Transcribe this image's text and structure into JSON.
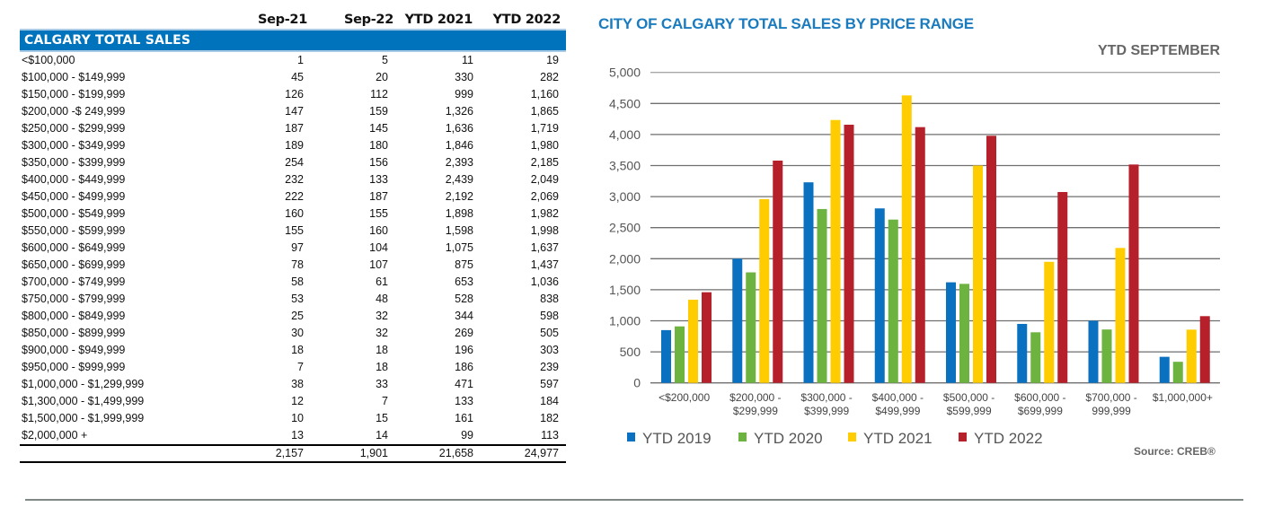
{
  "table": {
    "columns": [
      "Sep-21",
      "Sep-22",
      "YTD 2021",
      "YTD 2022"
    ],
    "section_title": "CALGARY TOTAL SALES",
    "rows": [
      {
        "range": "<$100,000",
        "values": [
          "1",
          "5",
          "11",
          "19"
        ]
      },
      {
        "range": "$100,000 - $149,999",
        "values": [
          "45",
          "20",
          "330",
          "282"
        ]
      },
      {
        "range": "$150,000 - $199,999",
        "values": [
          "126",
          "112",
          "999",
          "1,160"
        ]
      },
      {
        "range": "$200,000 -$ 249,999",
        "values": [
          "147",
          "159",
          "1,326",
          "1,865"
        ]
      },
      {
        "range": "$250,000 - $299,999",
        "values": [
          "187",
          "145",
          "1,636",
          "1,719"
        ]
      },
      {
        "range": "$300,000 - $349,999",
        "values": [
          "189",
          "180",
          "1,846",
          "1,980"
        ]
      },
      {
        "range": "$350,000 - $399,999",
        "values": [
          "254",
          "156",
          "2,393",
          "2,185"
        ]
      },
      {
        "range": "$400,000 - $449,999",
        "values": [
          "232",
          "133",
          "2,439",
          "2,049"
        ]
      },
      {
        "range": "$450,000 - $499,999",
        "values": [
          "222",
          "187",
          "2,192",
          "2,069"
        ]
      },
      {
        "range": "$500,000 - $549,999",
        "values": [
          "160",
          "155",
          "1,898",
          "1,982"
        ]
      },
      {
        "range": "$550,000 - $599,999",
        "values": [
          "155",
          "160",
          "1,598",
          "1,998"
        ]
      },
      {
        "range": "$600,000 - $649,999",
        "values": [
          "97",
          "104",
          "1,075",
          "1,637"
        ]
      },
      {
        "range": "$650,000 - $699,999",
        "values": [
          "78",
          "107",
          "875",
          "1,437"
        ]
      },
      {
        "range": "$700,000 - $749,999",
        "values": [
          "58",
          "61",
          "653",
          "1,036"
        ]
      },
      {
        "range": "$750,000 - $799,999",
        "values": [
          "53",
          "48",
          "528",
          "838"
        ]
      },
      {
        "range": "$800,000 - $849,999",
        "values": [
          "25",
          "32",
          "344",
          "598"
        ]
      },
      {
        "range": "$850,000 - $899,999",
        "values": [
          "30",
          "32",
          "269",
          "505"
        ]
      },
      {
        "range": "$900,000 - $949,999",
        "values": [
          "18",
          "18",
          "196",
          "303"
        ]
      },
      {
        "range": "$950,000 - $999,999",
        "values": [
          "7",
          "18",
          "186",
          "239"
        ]
      },
      {
        "range": "$1,000,000 - $1,299,999",
        "values": [
          "38",
          "33",
          "471",
          "597"
        ]
      },
      {
        "range": "$1,300,000 - $1,499,999",
        "values": [
          "12",
          "7",
          "133",
          "184"
        ]
      },
      {
        "range": "$1,500,000 - $1,999,999",
        "values": [
          "10",
          "15",
          "161",
          "182"
        ]
      },
      {
        "range": "$2,000,000 +",
        "values": [
          "13",
          "14",
          "99",
          "113"
        ]
      }
    ],
    "totals": [
      "2,157",
      "1,901",
      "21,658",
      "24,977"
    ]
  },
  "chart_data": {
    "type": "bar",
    "title": "CITY OF CALGARY TOTAL SALES BY PRICE RANGE",
    "subtitle": "YTD  SEPTEMBER",
    "source": "Source: CREB®",
    "xlabel": "",
    "ylabel": "",
    "ylim": [
      0,
      5000
    ],
    "yticks": [
      0,
      500,
      1000,
      1500,
      2000,
      2500,
      3000,
      3500,
      4000,
      4500,
      5000
    ],
    "ytick_labels": [
      "0",
      "500",
      "1,000",
      "1,500",
      "2,000",
      "2,500",
      "3,000",
      "3,500",
      "4,000",
      "4,500",
      "5,000"
    ],
    "grid": true,
    "legend_position": "bottom",
    "categories": [
      [
        "<$200,000"
      ],
      [
        "$200,000 -",
        "$299,999"
      ],
      [
        "$300,000 -",
        "$399,999"
      ],
      [
        "$400,000 -",
        "$499,999"
      ],
      [
        "$500,000 -",
        "$599,999"
      ],
      [
        "$600,000 -",
        "$699,999"
      ],
      [
        "$700,000 -",
        "999,999"
      ],
      [
        "$1,000,000+"
      ]
    ],
    "series": [
      {
        "name": "YTD  2019",
        "color": "#0a70c0",
        "values": [
          850,
          2000,
          3230,
          2810,
          1620,
          950,
          1000,
          420
        ]
      },
      {
        "name": "YTD  2020",
        "color": "#6db33f",
        "values": [
          910,
          1780,
          2800,
          2630,
          1595,
          815,
          860,
          340
        ]
      },
      {
        "name": "YTD  2021",
        "color": "#ffcc00",
        "values": [
          1340,
          2960,
          4234,
          4630,
          3500,
          1950,
          2173,
          858
        ]
      },
      {
        "name": "YTD  2022",
        "color": "#b5202a",
        "values": [
          1460,
          3580,
          4158,
          4119,
          3980,
          3074,
          3517,
          1075
        ]
      }
    ]
  }
}
